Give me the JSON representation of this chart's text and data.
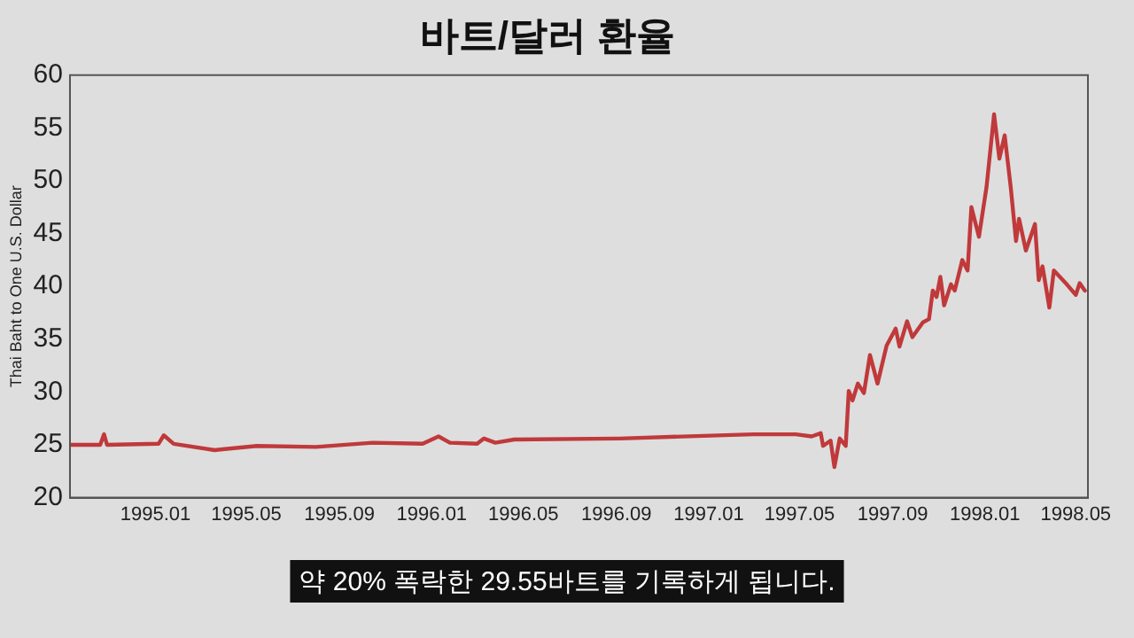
{
  "chart_data": {
    "type": "line",
    "title": "바트/달러 환율",
    "ylabel": "Thai Baht to One U.S. Dollar",
    "annotations": [
      "약 20% 폭락한 29.55바트를 기록하게 됩니다."
    ],
    "x": [
      "1994-09-10",
      "1994-10-20",
      "1994-10-25",
      "1994-10-29",
      "1995-01-05",
      "1995-01-12",
      "1995-01-25",
      "1995-03-20",
      "1995-05-15",
      "1995-08-01",
      "1995-10-15",
      "1995-12-20",
      "1996-01-10",
      "1996-01-25",
      "1996-03-01",
      "1996-03-10",
      "1996-03-25",
      "1996-04-19",
      "1996-09-06",
      "1997-03-01",
      "1997-04-26",
      "1997-05-17",
      "1997-05-29",
      "1997-06-01",
      "1997-06-11",
      "1997-06-16",
      "1997-06-23",
      "1997-07-01",
      "1997-07-05",
      "1997-07-10",
      "1997-07-17",
      "1997-07-25",
      "1997-08-02",
      "1997-08-12",
      "1997-08-24",
      "1997-09-05",
      "1997-09-10",
      "1997-09-20",
      "1997-09-27",
      "1997-10-11",
      "1997-10-19",
      "1997-10-24",
      "1997-10-29",
      "1997-11-03",
      "1997-11-08",
      "1997-11-17",
      "1997-11-22",
      "1997-12-02",
      "1997-12-09",
      "1997-12-14",
      "1997-12-24",
      "1998-01-03",
      "1998-01-13",
      "1998-01-20",
      "1998-01-27",
      "1998-02-04",
      "1998-02-11",
      "1998-02-15",
      "1998-02-24",
      "1998-03-08",
      "1998-03-13",
      "1998-03-18",
      "1998-03-27",
      "1998-04-02",
      "1998-04-19",
      "1998-05-01",
      "1998-05-06",
      "1998-05-13"
    ],
    "series": [
      {
        "color": "#c0393b",
        "values": [
          25.0,
          25.0,
          26.0,
          25.0,
          25.1,
          25.9,
          25.1,
          24.5,
          24.9,
          24.8,
          25.2,
          25.1,
          25.8,
          25.2,
          25.1,
          25.6,
          25.2,
          25.5,
          25.6,
          26.0,
          26.0,
          25.8,
          26.1,
          24.9,
          25.4,
          22.9,
          25.6,
          24.9,
          30.1,
          29.2,
          30.8,
          29.9,
          33.5,
          30.8,
          34.4,
          36.0,
          34.3,
          36.7,
          35.2,
          36.6,
          36.9,
          39.6,
          39.0,
          40.9,
          38.2,
          40.2,
          39.6,
          42.5,
          41.5,
          47.5,
          44.7,
          49.4,
          56.3,
          52.1,
          54.3,
          49.4,
          44.3,
          46.4,
          43.4,
          45.9,
          40.6,
          41.9,
          38.0,
          41.5,
          40.2,
          39.2,
          40.3,
          39.6
        ]
      }
    ],
    "xlim": [
      "1994-09-10",
      "1998-05-17"
    ],
    "xticks": [
      {
        "value": "1995-01",
        "label": "1995.01"
      },
      {
        "value": "1995-05",
        "label": "1995.05"
      },
      {
        "value": "1995-09",
        "label": "1995.09"
      },
      {
        "value": "1996-01",
        "label": "1996.01"
      },
      {
        "value": "1996-05",
        "label": "1996.05"
      },
      {
        "value": "1996-09",
        "label": "1996.09"
      },
      {
        "value": "1997-01",
        "label": "1997.01"
      },
      {
        "value": "1997-05",
        "label": "1997.05"
      },
      {
        "value": "1997-09",
        "label": "1997.09"
      },
      {
        "value": "1998-01",
        "label": "1998.01"
      },
      {
        "value": "1998-05",
        "label": "1998.05"
      }
    ],
    "ylim": [
      20,
      60
    ],
    "yticks": [
      20,
      25,
      30,
      35,
      40,
      45,
      50,
      55,
      60
    ],
    "grid": false,
    "legend": false,
    "marker": "none",
    "line_style": "solid"
  }
}
